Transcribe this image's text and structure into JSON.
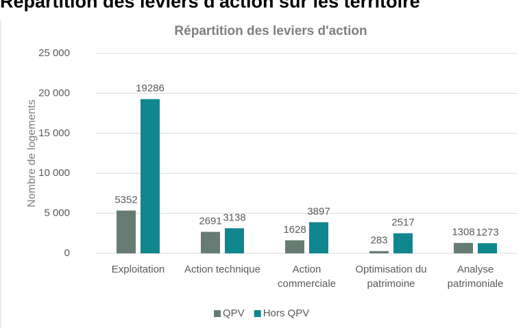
{
  "page_heading": "Répartition des leviers d'action sur les territoire",
  "chart_data": {
    "type": "bar",
    "title": "Répartition des leviers d'action",
    "y_label": "Nombre de logements",
    "categories": [
      "Exploitation",
      "Action technique",
      "Action commerciale",
      "Optimisation du patrimoine",
      "Analyse patrimoniale"
    ],
    "series": [
      {
        "name": "QPV",
        "color": "#667c73",
        "values": [
          5352,
          2691,
          1628,
          283,
          1308
        ]
      },
      {
        "name": "Hors QPV",
        "color": "#10878f",
        "values": [
          19286,
          3138,
          3897,
          2517,
          1273
        ]
      }
    ],
    "ylim": [
      0,
      25000
    ],
    "yticks": [
      0,
      {
        "value": 5000,
        "label": "5 000"
      },
      {
        "value": 10000,
        "label": "10 000"
      },
      {
        "value": 15000,
        "label": "15 000"
      },
      {
        "value": 20000,
        "label": "20 000"
      },
      {
        "value": 25000,
        "label": "25 000"
      }
    ],
    "grid": true,
    "legend": "bottom"
  }
}
